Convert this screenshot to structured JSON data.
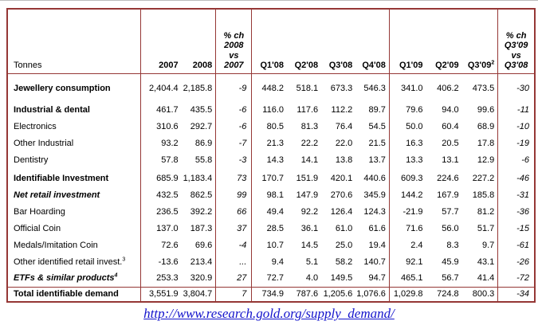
{
  "colors": {
    "table_border": "#953735",
    "link": "#1414cc",
    "text": "#000000"
  },
  "header": {
    "tonnes_label": "Tonnes",
    "year_columns": [
      "2007",
      "2008"
    ],
    "pct_change_2008_lines": [
      "% ch",
      "2008",
      "vs",
      "2007"
    ],
    "quarter_columns": [
      "Q1'08",
      "Q2'08",
      "Q3'08",
      "Q4'08",
      "Q1'09",
      "Q2'09",
      "Q3'09"
    ],
    "q3_09_superscript": "2",
    "pct_change_q3_lines": [
      "% ch",
      "Q3'09",
      "vs",
      "Q3'08"
    ]
  },
  "rows": [
    {
      "label": "Jewellery consumption",
      "superscript": "",
      "emphasis": "bold",
      "indent": 0,
      "gap_before": 8,
      "values": [
        "2,404.4",
        "2,185.8",
        "-9",
        "448.2",
        "518.1",
        "673.3",
        "546.3",
        "341.0",
        "406.2",
        "473.5",
        "-30"
      ]
    },
    {
      "label": "Industrial & dental",
      "superscript": "",
      "emphasis": "bold",
      "indent": 0,
      "gap_before": 6,
      "values": [
        "461.7",
        "435.5",
        "-6",
        "116.0",
        "117.6",
        "112.2",
        "89.7",
        "79.6",
        "94.0",
        "99.6",
        "-11"
      ]
    },
    {
      "label": "Electronics",
      "superscript": "",
      "emphasis": "normal",
      "indent": 0,
      "gap_before": 0,
      "values": [
        "310.6",
        "292.7",
        "-6",
        "80.5",
        "81.3",
        "76.4",
        "54.5",
        "50.0",
        "60.4",
        "68.9",
        "-10"
      ]
    },
    {
      "label": "Other Industrial",
      "superscript": "",
      "emphasis": "normal",
      "indent": 0,
      "gap_before": 0,
      "values": [
        "93.2",
        "86.9",
        "-7",
        "21.3",
        "22.2",
        "22.0",
        "21.5",
        "16.3",
        "20.5",
        "17.8",
        "-19"
      ]
    },
    {
      "label": "Dentistry",
      "superscript": "",
      "emphasis": "normal",
      "indent": 0,
      "gap_before": 0,
      "values": [
        "57.8",
        "55.8",
        "-3",
        "14.3",
        "14.1",
        "13.8",
        "13.7",
        "13.3",
        "13.1",
        "12.9",
        "-6"
      ]
    },
    {
      "label": "Identifiable Investment",
      "superscript": "",
      "emphasis": "bold",
      "indent": 0,
      "gap_before": 2,
      "values": [
        "685.9",
        "1,183.4",
        "73",
        "170.7",
        "151.9",
        "420.1",
        "440.6",
        "609.3",
        "224.6",
        "227.2",
        "-46"
      ]
    },
    {
      "label": "Net retail investment",
      "superscript": "",
      "emphasis": "bold-italic",
      "indent": 1,
      "gap_before": 0,
      "values": [
        "432.5",
        "862.5",
        "99",
        "98.1",
        "147.9",
        "270.6",
        "345.9",
        "144.2",
        "167.9",
        "185.8",
        "-31"
      ]
    },
    {
      "label": "Bar Hoarding",
      "superscript": "",
      "emphasis": "normal",
      "indent": 2,
      "gap_before": 0,
      "values": [
        "236.5",
        "392.2",
        "66",
        "49.4",
        "92.2",
        "126.4",
        "124.3",
        "-21.9",
        "57.7",
        "81.2",
        "-36"
      ]
    },
    {
      "label": "Official Coin",
      "superscript": "",
      "emphasis": "normal",
      "indent": 2,
      "gap_before": 0,
      "values": [
        "137.0",
        "187.3",
        "37",
        "28.5",
        "36.1",
        "61.0",
        "61.6",
        "71.6",
        "56.0",
        "51.7",
        "-15"
      ]
    },
    {
      "label": "Medals/Imitation Coin",
      "superscript": "",
      "emphasis": "normal",
      "indent": 2,
      "gap_before": 0,
      "values": [
        "72.6",
        "69.6",
        "-4",
        "10.7",
        "14.5",
        "25.0",
        "19.4",
        "2.4",
        "8.3",
        "9.7",
        "-61"
      ]
    },
    {
      "label": "Other identified retail invest.",
      "superscript": "3",
      "emphasis": "normal",
      "indent": 2,
      "gap_before": 0,
      "values": [
        "-13.6",
        "213.4",
        "...",
        "9.4",
        "5.1",
        "58.2",
        "140.7",
        "92.1",
        "45.9",
        "43.1",
        "-26"
      ]
    },
    {
      "label": "ETFs & similar products",
      "superscript": "4",
      "emphasis": "bold-italic",
      "indent": 1,
      "gap_before": 0,
      "values": [
        "253.3",
        "320.9",
        "27",
        "72.7",
        "4.0",
        "149.5",
        "94.7",
        "465.1",
        "56.7",
        "41.4",
        "-72"
      ]
    }
  ],
  "total_row": {
    "label": "Total identifiable demand",
    "superscript": "",
    "emphasis": "bold",
    "indent": 0,
    "gap_before": 0,
    "values": [
      "3,551.9",
      "3,804.7",
      "7",
      "734.9",
      "787.6",
      "1,205.6",
      "1,076.6",
      "1,029.8",
      "724.8",
      "800.3",
      "-34"
    ]
  },
  "footer": {
    "source_url": "http://www.research.gold.org/supply_demand/"
  }
}
